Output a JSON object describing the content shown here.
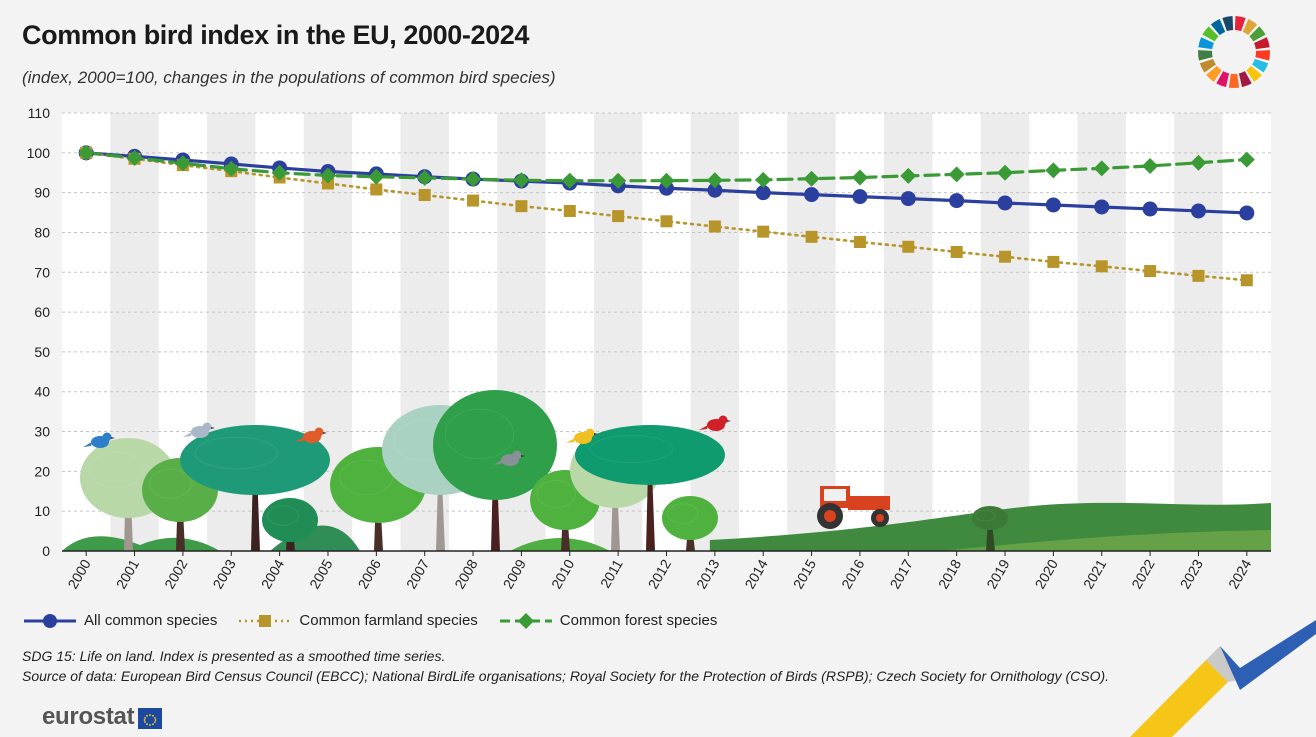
{
  "header": {
    "title": "Common bird index in the EU, 2000-2024",
    "subtitle": "(index, 2000=100, changes in the populations of common bird species)"
  },
  "legend": {
    "items": [
      {
        "label": "All common species",
        "color": "#2b3f9e",
        "marker": "circle",
        "dash": "solid"
      },
      {
        "label": "Common farmland species",
        "color": "#b8952a",
        "marker": "square",
        "dash": "dotted"
      },
      {
        "label": "Common forest species",
        "color": "#3a9a35",
        "marker": "diamond",
        "dash": "dashed"
      }
    ]
  },
  "notes": {
    "line1": "SDG 15: Life on land. Index is presented as a smoothed time series.",
    "line2": "Source of data: European Bird Census Council (EBCC); National BirdLife organisations; Royal Society for the Protection of Birds (RSPB); Czech Society for Ornithology (CSO)."
  },
  "logo": {
    "text": "eurostat"
  },
  "chart_data": {
    "type": "line",
    "title": "Common bird index in the EU, 2000-2024",
    "subtitle": "(index, 2000=100, changes in the populations of common bird species)",
    "xlabel": "",
    "ylabel": "",
    "ylim": [
      0,
      110
    ],
    "yticks": [
      0,
      10,
      20,
      30,
      40,
      50,
      60,
      70,
      80,
      90,
      100,
      110
    ],
    "grid": true,
    "legend_position": "bottom",
    "x": [
      "2000",
      "2001",
      "2002",
      "2003",
      "2004",
      "2005",
      "2006",
      "2007",
      "2008",
      "2009",
      "2010",
      "2011",
      "2012",
      "2013",
      "2014",
      "2015",
      "2016",
      "2017",
      "2018",
      "2019",
      "2020",
      "2021",
      "2022",
      "2023",
      "2024"
    ],
    "series": [
      {
        "name": "All common species",
        "color": "#2b3f9e",
        "values": [
          100.0,
          99.1,
          98.2,
          97.2,
          96.2,
          95.3,
          94.7,
          94.0,
          93.4,
          92.9,
          92.4,
          91.7,
          91.1,
          90.6,
          90.0,
          89.5,
          89.0,
          88.5,
          88.0,
          87.4,
          86.9,
          86.4,
          85.9,
          85.4,
          84.9
        ]
      },
      {
        "name": "Common farmland species",
        "color": "#b8952a",
        "values": [
          100.0,
          98.5,
          96.9,
          95.4,
          93.8,
          92.3,
          90.8,
          89.4,
          88.0,
          86.6,
          85.4,
          84.1,
          82.8,
          81.5,
          80.2,
          78.9,
          77.6,
          76.4,
          75.1,
          73.9,
          72.6,
          71.5,
          70.3,
          69.1,
          68.0
        ]
      },
      {
        "name": "Common forest species",
        "color": "#3a9a35",
        "values": [
          100.0,
          98.7,
          97.4,
          96.0,
          95.0,
          94.3,
          94.0,
          93.7,
          93.4,
          93.1,
          93.0,
          93.0,
          93.0,
          93.1,
          93.2,
          93.5,
          93.8,
          94.2,
          94.6,
          95.0,
          95.6,
          96.1,
          96.7,
          97.5,
          98.3
        ]
      }
    ]
  }
}
